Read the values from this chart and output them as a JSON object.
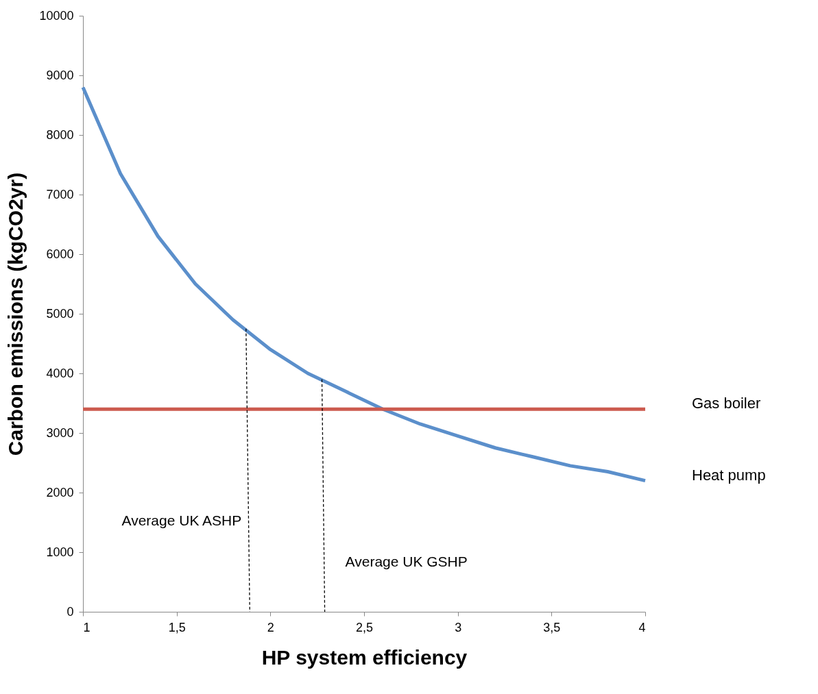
{
  "chart_data": {
    "type": "line",
    "xlabel": "HP system efficiency",
    "ylabel": "Carbon emissions (kgCO2yr)",
    "x": [
      1,
      1.2,
      1.4,
      1.6,
      1.8,
      2,
      2.2,
      2.4,
      2.6,
      2.8,
      3,
      3.2,
      3.4,
      3.6,
      3.8,
      4
    ],
    "series": [
      {
        "name": "Heat pump",
        "color": "#5b8fcb",
        "values": [
          8800,
          7350,
          6300,
          5500,
          4900,
          4400,
          4000,
          3700,
          3400,
          3150,
          2950,
          2750,
          2600,
          2450,
          2350,
          2200
        ]
      },
      {
        "name": "Gas boiler",
        "color": "#cc5b4f",
        "x": [
          1,
          4
        ],
        "values": [
          3400,
          3400
        ]
      },
      {
        "type": "line",
        "color": "#000000",
        "line_style": "dashed",
        "x": [
          1.89,
          1.87
        ],
        "values": [
          0,
          4750
        ]
      },
      {
        "type": "line",
        "color": "#000000",
        "line_style": "dashed",
        "x": [
          2.29,
          2.275
        ],
        "values": [
          0,
          3900
        ]
      }
    ],
    "annotations": [
      "Average UK ASHP",
      "Average UK GSHP"
    ],
    "xlim": [
      1,
      4
    ],
    "xticks": [
      1,
      {
        "value": 1.5,
        "label": "1,5"
      },
      2,
      {
        "value": 2.5,
        "label": "2,5"
      },
      3,
      {
        "value": 3.5,
        "label": "3,5"
      },
      4
    ],
    "ylim": [
      0,
      10000
    ],
    "yticks": [
      0,
      1000,
      2000,
      3000,
      4000,
      5000,
      6000,
      7000,
      8000,
      9000,
      10000
    ],
    "grid": false,
    "marker": "none"
  }
}
